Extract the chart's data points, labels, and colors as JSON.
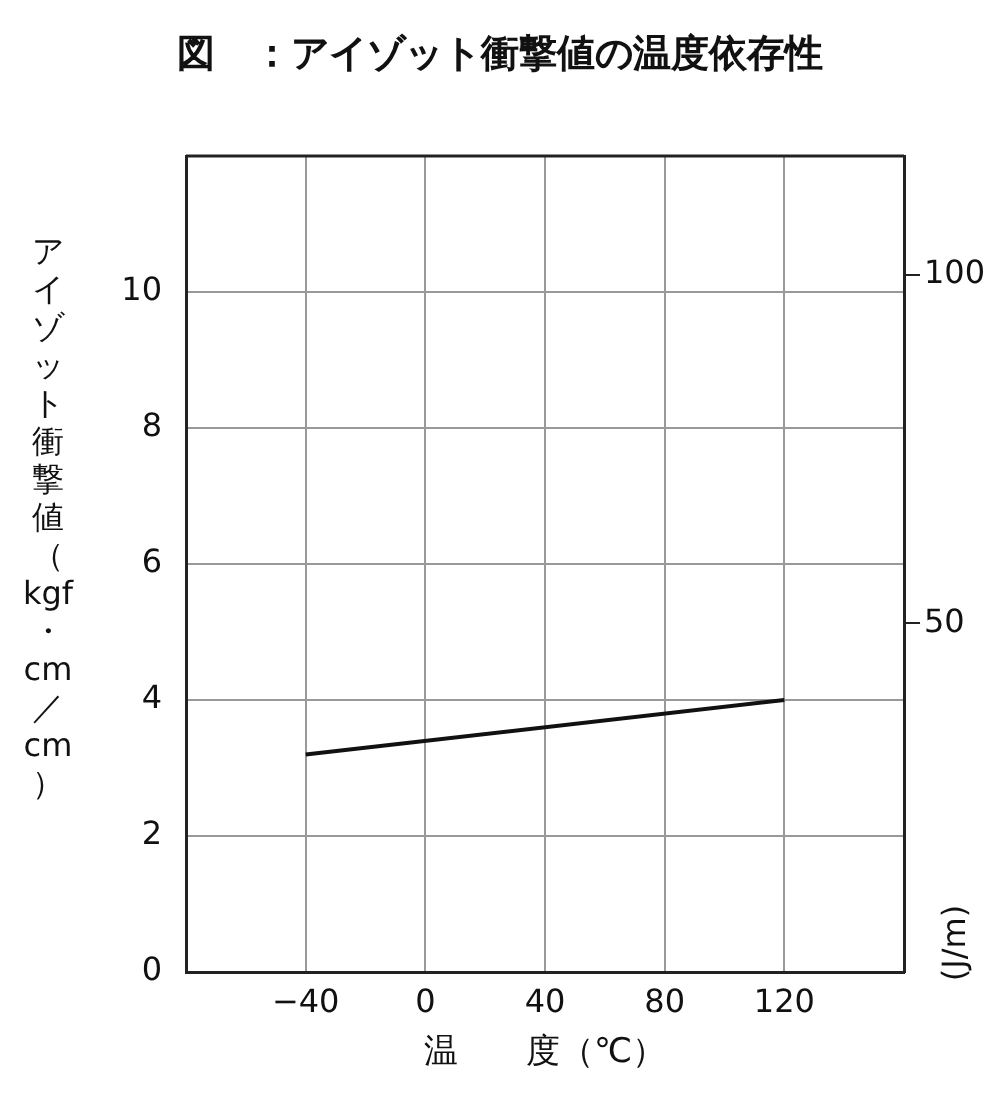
{
  "chart_data": {
    "type": "line",
    "title": "図　：アイゾット衝撃値の温度依存性",
    "xlabel": "温　　度（℃）",
    "ylabel": "アイゾット衝撃値（kgf・cm／cm）",
    "y2label": "(J/m)",
    "series": [
      {
        "x": [
          -40,
          120
        ],
        "values": [
          3.2,
          4.0
        ],
        "color": "#111111"
      }
    ],
    "xlim": [
      -80,
      160
    ],
    "xticks": [
      {
        "value": -80,
        "label": null
      },
      {
        "value": -40,
        "label": "−40"
      },
      0,
      40,
      80,
      120,
      {
        "value": 160,
        "label": null
      }
    ],
    "ylim": [
      0,
      12
    ],
    "yticks": [
      0,
      2,
      4,
      6,
      8,
      10,
      {
        "value": 12,
        "label": null
      }
    ],
    "y2lim": [
      0,
      117
    ],
    "y2ticks": [
      50,
      100
    ],
    "grid": true,
    "marker": "none",
    "line_style": "solid",
    "legend": false
  }
}
